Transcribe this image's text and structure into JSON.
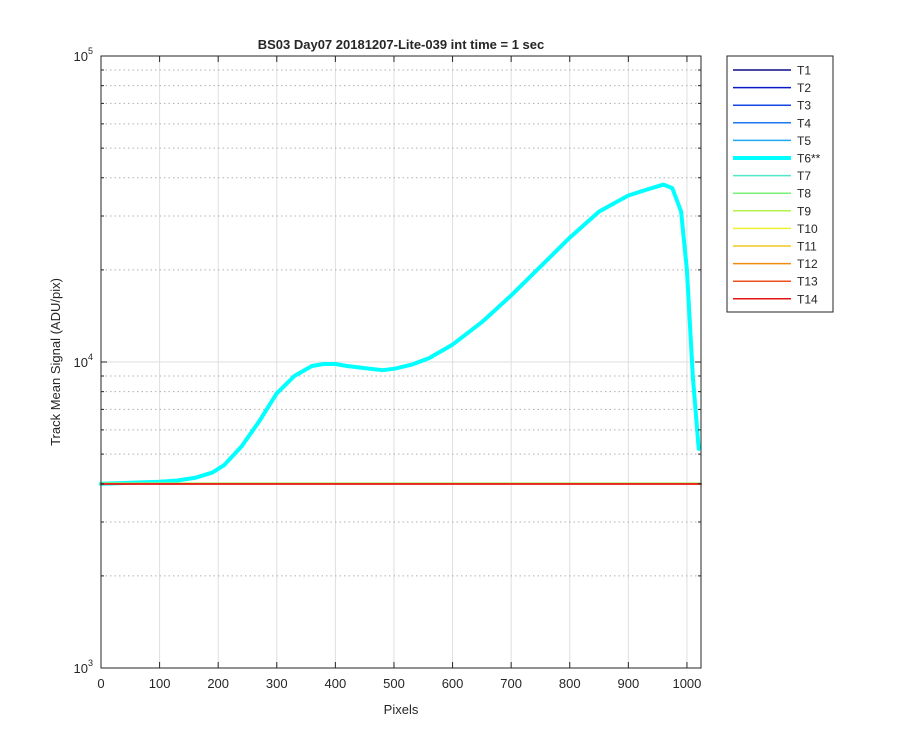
{
  "chart_data": {
    "type": "line",
    "title": "BS03 Day07 20181207-Lite-039 int time = 1 sec",
    "xlabel": "Pixels",
    "ylabel": "Track Mean Signal (ADU/pix)",
    "xlim": [
      0,
      1024
    ],
    "ylim": [
      1000,
      100000
    ],
    "yscale": "log",
    "grid": true,
    "legend_position": "outside-top-right",
    "x_ticks": [
      0,
      100,
      200,
      300,
      400,
      500,
      600,
      700,
      800,
      900,
      1000
    ],
    "x_tick_labels": [
      "0",
      "100",
      "200",
      "300",
      "400",
      "500",
      "600",
      "700",
      "800",
      "900",
      "1000"
    ],
    "y_ticks": [
      1000,
      10000,
      100000
    ],
    "y_tick_labels": [
      {
        "base": "10",
        "exp": "3"
      },
      {
        "base": "10",
        "exp": "4"
      },
      {
        "base": "10",
        "exp": "5"
      }
    ],
    "series": [
      {
        "name": "T1",
        "color": "#0a0a8c",
        "highlight": false,
        "flat_value": 4000
      },
      {
        "name": "T2",
        "color": "#0a1ac8",
        "highlight": false,
        "flat_value": 4000
      },
      {
        "name": "T3",
        "color": "#1446e6",
        "highlight": false,
        "flat_value": 4000
      },
      {
        "name": "T4",
        "color": "#1e78f0",
        "highlight": false,
        "flat_value": 4000
      },
      {
        "name": "T5",
        "color": "#1eaaf0",
        "highlight": false,
        "flat_value": 4000
      },
      {
        "name": "T6**",
        "color": "#00ffff",
        "highlight": true,
        "x": [
          0,
          50,
          100,
          130,
          160,
          190,
          210,
          240,
          270,
          300,
          330,
          360,
          380,
          400,
          420,
          450,
          480,
          500,
          530,
          560,
          600,
          650,
          700,
          750,
          800,
          850,
          900,
          930,
          960,
          975,
          990,
          1000,
          1010,
          1020
        ],
        "values": [
          4000,
          4030,
          4060,
          4100,
          4180,
          4350,
          4600,
          5300,
          6400,
          7900,
          9000,
          9700,
          9850,
          9850,
          9700,
          9550,
          9400,
          9500,
          9800,
          10300,
          11400,
          13500,
          16500,
          20500,
          25500,
          31000,
          35000,
          36500,
          38000,
          37000,
          31000,
          20000,
          9000,
          5200
        ]
      },
      {
        "name": "T7",
        "color": "#50e6c8",
        "highlight": false,
        "flat_value": 4000
      },
      {
        "name": "T8",
        "color": "#78f078",
        "highlight": false,
        "flat_value": 4020
      },
      {
        "name": "T9",
        "color": "#b4f050",
        "highlight": false,
        "flat_value": 4010
      },
      {
        "name": "T10",
        "color": "#f0f032",
        "highlight": false,
        "flat_value": 4000
      },
      {
        "name": "T11",
        "color": "#f0c81e",
        "highlight": false,
        "flat_value": 4000
      },
      {
        "name": "T12",
        "color": "#f08c14",
        "highlight": false,
        "flat_value": 4000
      },
      {
        "name": "T13",
        "color": "#f0501e",
        "highlight": false,
        "flat_value": 4000
      },
      {
        "name": "T14",
        "color": "#e61414",
        "highlight": false,
        "flat_value": 3990
      }
    ]
  }
}
